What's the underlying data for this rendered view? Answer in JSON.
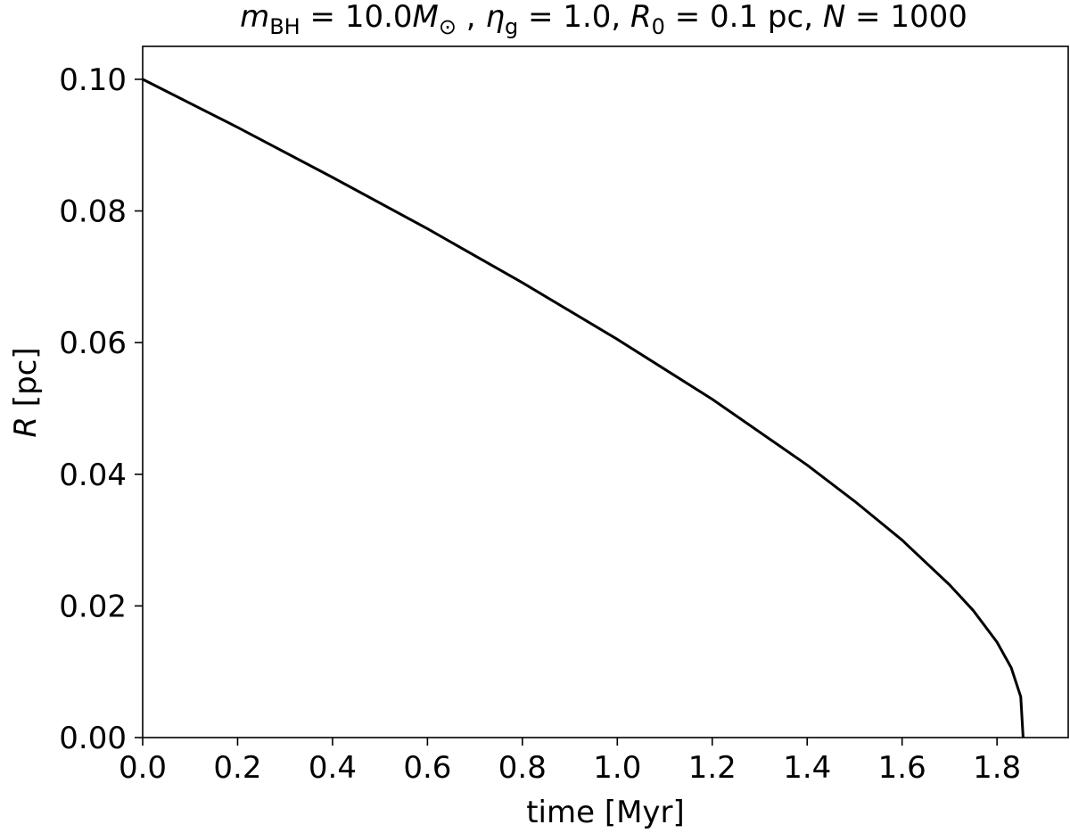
{
  "chart_data": {
    "type": "line",
    "title": {
      "m_sym": "m",
      "m_sub": "BH",
      "m_val": " = 10.0",
      "M_sym": "M",
      "M_sub": "⊙",
      "eta_prefix": " , ",
      "eta_sym": "η",
      "eta_sub": "g",
      "eta_val": " = 1.0, ",
      "R_sym": "R",
      "R_sub": "0",
      "R_val": " = 0.1 pc, ",
      "N_sym": "N",
      "N_val": " = 1000"
    },
    "xlabel": "time [Myr]",
    "ylabel_sym": "R",
    "ylabel_unit": " [pc]",
    "xlim": [
      0.0,
      1.95
    ],
    "ylim": [
      0.0,
      0.105
    ],
    "xticks": [
      0.0,
      0.2,
      0.4,
      0.6,
      0.8,
      1.0,
      1.2,
      1.4,
      1.6,
      1.8
    ],
    "xtick_labels": [
      "0.0",
      "0.2",
      "0.4",
      "0.6",
      "0.8",
      "1.0",
      "1.2",
      "1.4",
      "1.6",
      "1.8"
    ],
    "yticks": [
      0.0,
      0.02,
      0.04,
      0.06,
      0.08,
      0.1
    ],
    "ytick_labels": [
      "0.00",
      "0.02",
      "0.04",
      "0.06",
      "0.08",
      "0.10"
    ],
    "grid": false,
    "series": [
      {
        "color": "#000000",
        "x": [
          0.0,
          0.2,
          0.4,
          0.6,
          0.8,
          1.0,
          1.2,
          1.4,
          1.5,
          1.6,
          1.7,
          1.75,
          1.8,
          1.83,
          1.85,
          1.855
        ],
        "y": [
          0.1,
          0.0927,
          0.0851,
          0.0773,
          0.0691,
          0.0605,
          0.0514,
          0.0414,
          0.0359,
          0.03,
          0.0232,
          0.0193,
          0.0145,
          0.0106,
          0.0062,
          0.0
        ]
      }
    ]
  }
}
